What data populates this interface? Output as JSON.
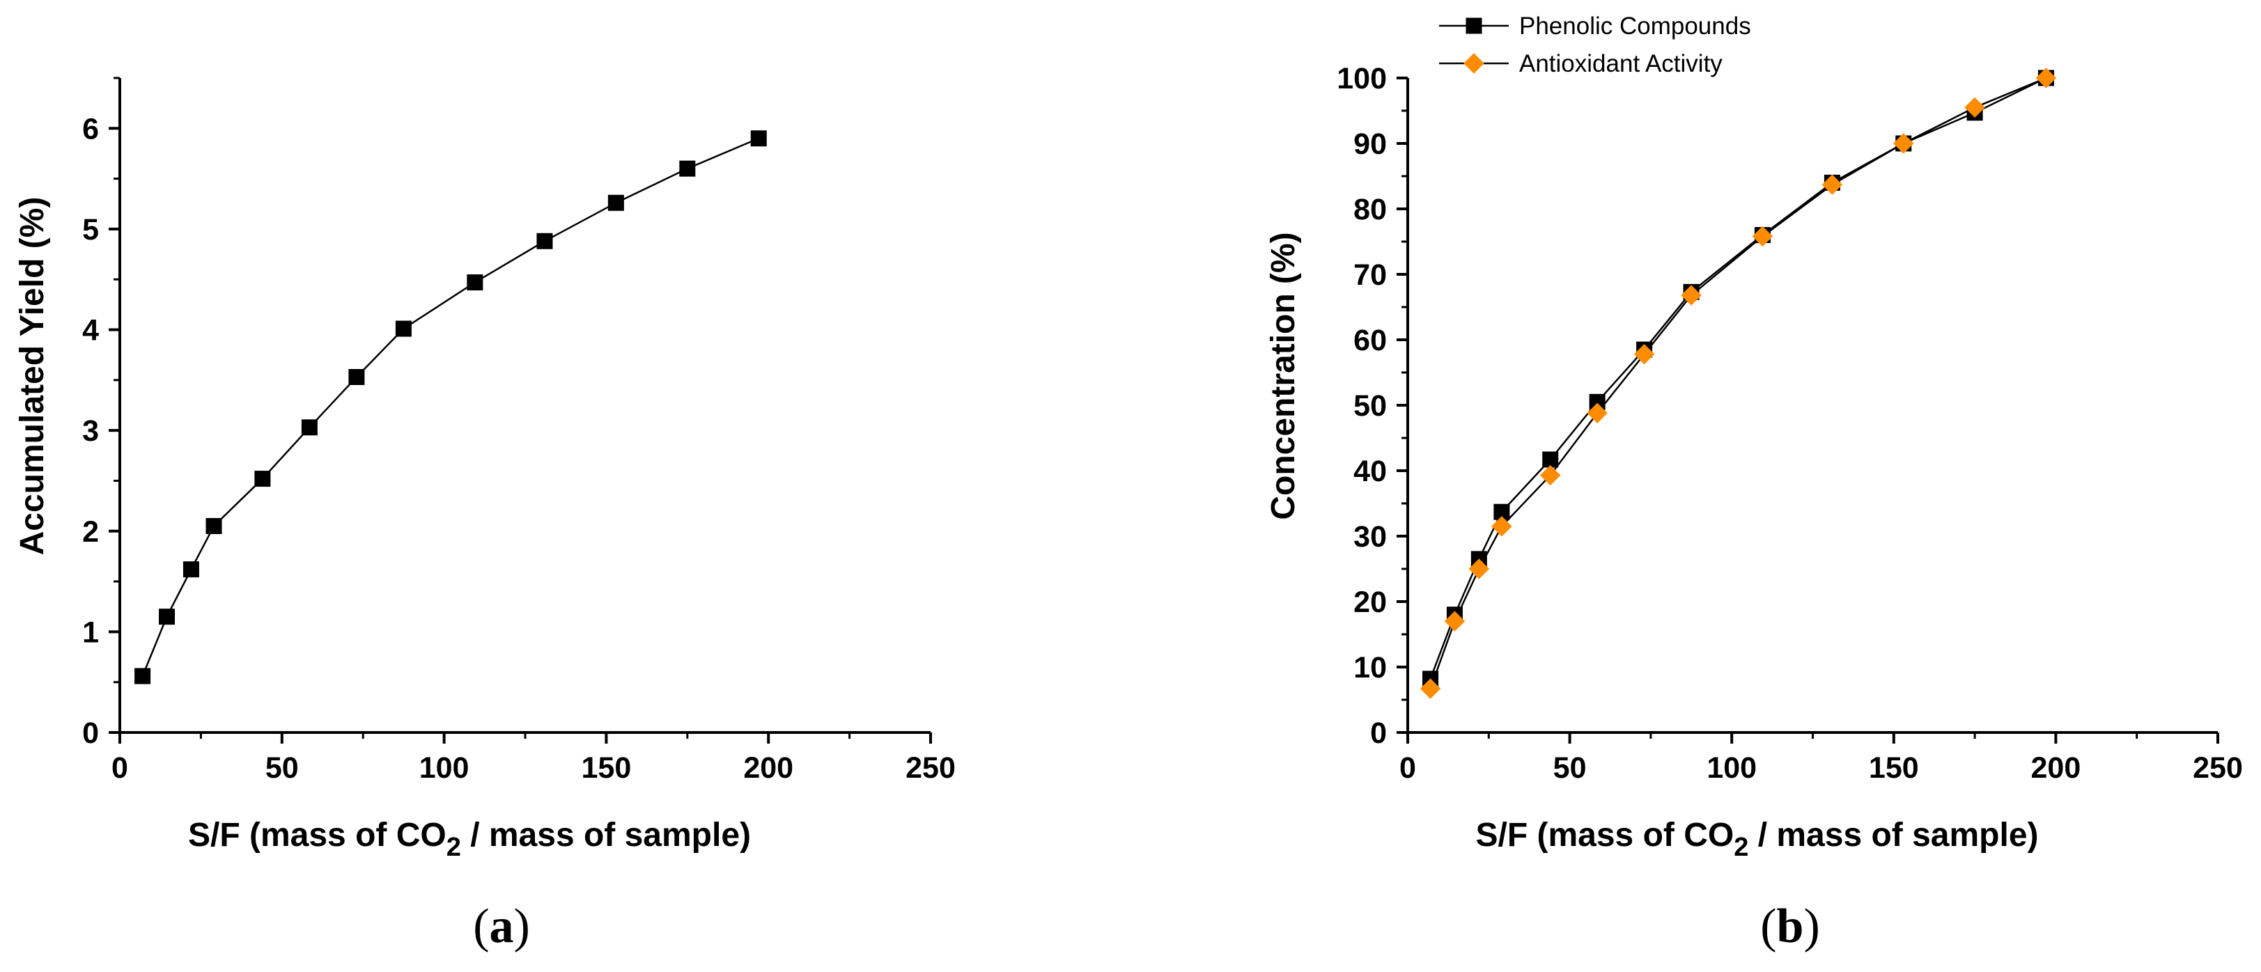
{
  "chart_data": [
    {
      "type": "line",
      "panel_label": "a",
      "xlabel": {
        "main": "S/F (mass of CO",
        "sub": "2",
        "rest": " / mass of sample)"
      },
      "ylabel": "Accumulated Yield (%)",
      "xlim": [
        0,
        250
      ],
      "ylim": [
        0,
        6.5
      ],
      "xticks": [
        0,
        50,
        100,
        150,
        200,
        250
      ],
      "yticks": [
        0,
        1,
        2,
        3,
        4,
        5,
        6
      ],
      "series": [
        {
          "name": "Accumulated Yield",
          "marker": "square",
          "color": "#000000",
          "x": [
            7,
            14.5,
            22,
            29,
            44,
            58.5,
            73,
            87.5,
            109.5,
            131,
            153,
            175,
            197
          ],
          "y": [
            0.56,
            1.15,
            1.62,
            2.05,
            2.52,
            3.03,
            3.53,
            4.01,
            4.47,
            4.88,
            5.26,
            5.6,
            5.9
          ]
        }
      ]
    },
    {
      "type": "line",
      "panel_label": "b",
      "xlabel": {
        "main": "S/F (mass of CO",
        "sub": "2",
        "rest": " / mass of sample)"
      },
      "ylabel": "Concentration (%)",
      "xlim": [
        0,
        250
      ],
      "ylim": [
        0,
        100
      ],
      "xticks": [
        0,
        50,
        100,
        150,
        200,
        250
      ],
      "yticks": [
        0,
        10,
        20,
        30,
        40,
        50,
        60,
        70,
        80,
        90,
        100
      ],
      "legend": {
        "position": "top-left",
        "entries": [
          "Phenolic Compounds",
          "Antioxidant Activity"
        ]
      },
      "series": [
        {
          "name": "Phenolic Compounds",
          "marker": "square",
          "color": "#000000",
          "x": [
            7,
            14.5,
            22,
            29,
            44,
            58.5,
            73,
            87.5,
            109.5,
            131,
            153,
            175,
            197
          ],
          "y": [
            8.2,
            18,
            26.5,
            33.7,
            41.7,
            50.5,
            58.5,
            67.3,
            76,
            84,
            90,
            94.7,
            100
          ]
        },
        {
          "name": "Antioxidant Activity",
          "marker": "diamond",
          "color": "#ff8c00",
          "x": [
            7,
            14.5,
            22,
            29,
            44,
            58.5,
            73,
            87.5,
            109.5,
            131,
            153,
            175,
            197
          ],
          "y": [
            6.7,
            17,
            25,
            31.5,
            39.3,
            48.8,
            57.8,
            66.8,
            75.8,
            83.7,
            90,
            95.5,
            100
          ]
        }
      ]
    }
  ]
}
